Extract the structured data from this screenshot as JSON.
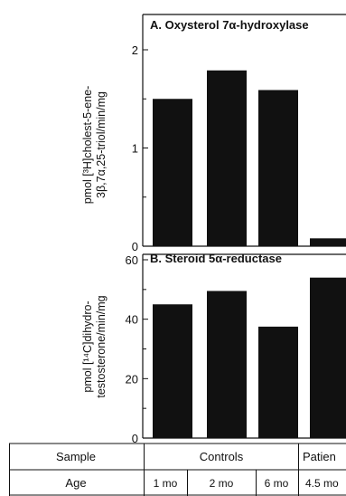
{
  "chart_data": [
    {
      "type": "bar",
      "title": "A. Oxysterol 7α-hydroxylase",
      "ylabel_lines": [
        "pmol [³H]cholest-5-ene-",
        "3β,7α,25-triol/min/mg"
      ],
      "ylim": [
        0,
        2
      ],
      "yticks": [
        "0",
        "1",
        "2"
      ],
      "values": [
        1.5,
        1.79,
        1.59,
        0.08
      ]
    },
    {
      "type": "bar",
      "title": "B. Steroid 5α-reductase",
      "ylabel_lines": [
        "pmol [¹⁴C]dihydro-",
        "testosterone/min/mg"
      ],
      "ylim": [
        0,
        60
      ],
      "yticks": [
        "0",
        "20",
        "40",
        "60"
      ],
      "values": [
        45,
        49.5,
        37.5,
        54
      ]
    }
  ],
  "table": {
    "row1_label": "Sample",
    "row2_label": "Age",
    "controls_label": "Controls",
    "patient_label": "Patien",
    "ages": [
      "1 mo",
      "2 mo",
      "6 mo",
      "4.5 mo"
    ]
  }
}
